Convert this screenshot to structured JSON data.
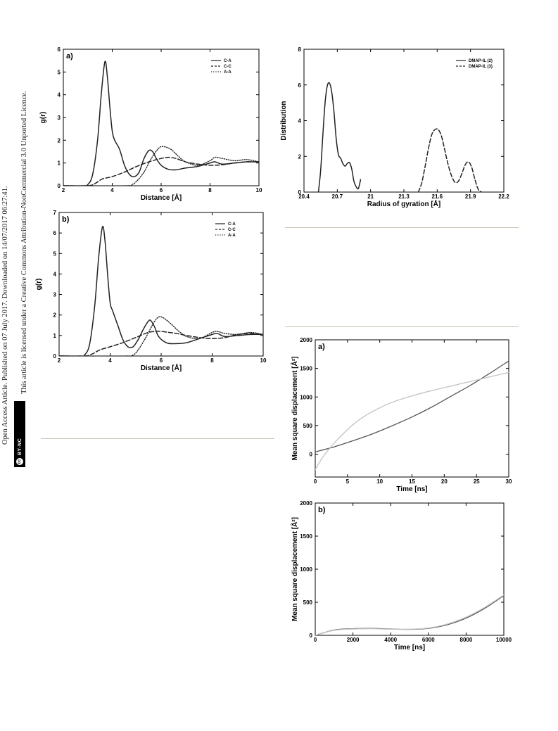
{
  "sidebar": {
    "line1": "Open Access Article. Published on 07 July 2017. Downloaded on 14/07/2017 06:27:41.",
    "line2": "This article is licensed under a Creative Commons Attribution-NonCommercial 3.0 Unported Licence.",
    "badge_cc": "cc",
    "badge_text": "BY-NC"
  },
  "chart_data": [
    {
      "id": "rdf_a",
      "type": "line",
      "panel_label": "a)",
      "xlabel": "Distance [Å]",
      "ylabel": "g(r)",
      "xlim": [
        2,
        10
      ],
      "ylim": [
        0,
        6
      ],
      "xticks": [
        2,
        4,
        6,
        8,
        10
      ],
      "yticks": [
        0,
        1,
        2,
        3,
        4,
        5,
        6
      ],
      "legend_position": "top-right",
      "series": [
        {
          "name": "C-A",
          "style": "solid",
          "x": [
            2,
            2.8,
            3.0,
            3.2,
            3.4,
            3.55,
            3.7,
            3.8,
            3.9,
            4.0,
            4.1,
            4.3,
            4.5,
            4.7,
            4.9,
            5.1,
            5.3,
            5.5,
            5.65,
            5.8,
            6.0,
            6.3,
            6.6,
            7.0,
            7.5,
            8.0,
            8.2,
            8.5,
            9.0,
            9.5,
            10
          ],
          "y": [
            0,
            0,
            0.05,
            0.5,
            2.0,
            4.0,
            5.45,
            4.8,
            3.5,
            2.4,
            2.0,
            1.6,
            0.9,
            0.5,
            0.4,
            0.6,
            1.2,
            1.55,
            1.5,
            1.2,
            0.9,
            0.72,
            0.7,
            0.78,
            0.85,
            1.0,
            1.05,
            0.95,
            1.0,
            1.05,
            1.05
          ]
        },
        {
          "name": "C-C",
          "style": "dashed",
          "x": [
            2,
            3.0,
            3.3,
            3.6,
            4.0,
            4.5,
            5.0,
            5.5,
            6.0,
            6.3,
            6.6,
            7.0,
            7.5,
            8.0,
            8.5,
            9.0,
            9.5,
            10
          ],
          "y": [
            0,
            0,
            0.1,
            0.3,
            0.4,
            0.6,
            0.85,
            1.05,
            1.2,
            1.25,
            1.2,
            1.05,
            0.95,
            0.9,
            0.92,
            1.0,
            1.05,
            1.05
          ]
        },
        {
          "name": "A-A",
          "style": "dotted",
          "x": [
            2,
            4.5,
            4.8,
            5.0,
            5.3,
            5.6,
            5.9,
            6.1,
            6.4,
            6.7,
            7.0,
            7.5,
            8.0,
            8.2,
            8.5,
            9.0,
            9.5,
            10
          ],
          "y": [
            0,
            0,
            0.05,
            0.2,
            0.6,
            1.2,
            1.65,
            1.72,
            1.6,
            1.3,
            1.05,
            0.9,
            1.1,
            1.25,
            1.2,
            1.1,
            1.15,
            1.05
          ]
        }
      ]
    },
    {
      "id": "rdf_b",
      "type": "line",
      "panel_label": "b)",
      "xlabel": "Distance [Å]",
      "ylabel": "g(r)",
      "xlim": [
        2,
        10
      ],
      "ylim": [
        0,
        7
      ],
      "xticks": [
        2,
        4,
        6,
        8,
        10
      ],
      "yticks": [
        0,
        1,
        2,
        3,
        4,
        5,
        6,
        7
      ],
      "legend_position": "top-right",
      "series": [
        {
          "name": "C-A",
          "style": "solid",
          "x": [
            2,
            2.8,
            3.0,
            3.2,
            3.4,
            3.55,
            3.7,
            3.8,
            3.9,
            4.0,
            4.1,
            4.3,
            4.5,
            4.7,
            4.9,
            5.1,
            5.3,
            5.5,
            5.6,
            5.75,
            5.9,
            6.2,
            6.5,
            7.0,
            7.5,
            8.0,
            8.2,
            8.5,
            9.0,
            9.5,
            10
          ],
          "y": [
            0,
            0,
            0.05,
            0.6,
            2.5,
            4.8,
            6.3,
            5.6,
            4.0,
            2.6,
            2.2,
            1.5,
            0.8,
            0.45,
            0.45,
            0.8,
            1.3,
            1.7,
            1.72,
            1.4,
            0.95,
            0.65,
            0.6,
            0.65,
            0.85,
            1.05,
            1.1,
            0.95,
            1.0,
            1.05,
            1.05
          ]
        },
        {
          "name": "C-C",
          "style": "dashed",
          "x": [
            2,
            3.0,
            3.3,
            3.6,
            4.0,
            4.5,
            5.0,
            5.5,
            5.8,
            6.0,
            6.3,
            6.6,
            7.0,
            7.5,
            8.0,
            8.5,
            9.0,
            9.5,
            10
          ],
          "y": [
            0,
            0,
            0.1,
            0.3,
            0.45,
            0.65,
            0.9,
            1.15,
            1.2,
            1.2,
            1.15,
            1.1,
            1.0,
            0.9,
            0.85,
            0.9,
            1.05,
            1.1,
            1.05
          ]
        },
        {
          "name": "A-A",
          "style": "dotted",
          "x": [
            2,
            4.6,
            4.9,
            5.1,
            5.4,
            5.7,
            5.9,
            6.1,
            6.4,
            6.7,
            7.0,
            7.5,
            8.0,
            8.2,
            8.5,
            9.0,
            9.5,
            10
          ],
          "y": [
            0,
            0,
            0.05,
            0.3,
            0.9,
            1.6,
            1.9,
            1.85,
            1.55,
            1.2,
            0.95,
            0.85,
            1.15,
            1.2,
            1.1,
            1.05,
            1.15,
            1.05
          ]
        }
      ]
    },
    {
      "id": "rg_dist",
      "type": "line",
      "panel_label": "",
      "xlabel": "Radius of gyration [Å]",
      "ylabel": "Distribution",
      "xlim": [
        20.4,
        22.2
      ],
      "ylim": [
        0,
        8
      ],
      "xticks": [
        20.4,
        20.7,
        21,
        21.3,
        21.6,
        21.9,
        22.2
      ],
      "yticks": [
        0,
        2,
        4,
        6,
        8
      ],
      "legend_position": "top-right",
      "series": [
        {
          "name": "DMAP-IL (2)",
          "style": "solid",
          "x": [
            20.53,
            20.55,
            20.57,
            20.59,
            20.61,
            20.63,
            20.65,
            20.67,
            20.69,
            20.71,
            20.73,
            20.75,
            20.77,
            20.79,
            20.81,
            20.83,
            20.85,
            20.87,
            20.89,
            20.91
          ],
          "y": [
            0,
            1.2,
            3.2,
            5.0,
            5.95,
            6.1,
            5.6,
            4.5,
            3.0,
            2.1,
            1.9,
            1.6,
            1.45,
            1.6,
            1.65,
            1.3,
            0.6,
            0.3,
            0.2,
            0.7
          ]
        },
        {
          "name": "DMAP-IL (3)",
          "style": "dashed",
          "x": [
            21.43,
            21.46,
            21.49,
            21.52,
            21.55,
            21.58,
            21.61,
            21.64,
            21.67,
            21.7,
            21.73,
            21.76,
            21.79,
            21.82,
            21.85,
            21.88,
            21.91,
            21.94,
            21.97,
            22.0
          ],
          "y": [
            0,
            0.5,
            1.4,
            2.4,
            3.2,
            3.5,
            3.5,
            3.1,
            2.3,
            1.5,
            0.9,
            0.55,
            0.6,
            1.0,
            1.5,
            1.7,
            1.4,
            0.7,
            0.15,
            0
          ]
        }
      ]
    },
    {
      "id": "msd_a",
      "type": "line",
      "panel_label": "a)",
      "xlabel": "Time [ns]",
      "ylabel": "Mean square displacement [Å²]",
      "xlim": [
        0,
        30
      ],
      "ylim": [
        -400,
        2000
      ],
      "xticks": [
        0,
        5,
        10,
        15,
        20,
        25,
        30
      ],
      "yticks": [
        0,
        500,
        1000,
        1500,
        2000
      ],
      "series": [
        {
          "style": "solid-dark",
          "x": [
            0,
            3,
            6,
            9,
            12,
            15,
            18,
            21,
            24,
            27,
            30
          ],
          "y": [
            40,
            130,
            240,
            360,
            500,
            650,
            820,
            1010,
            1200,
            1410,
            1630
          ]
        },
        {
          "style": "solid-light",
          "x": [
            0,
            1,
            2,
            3,
            4,
            6,
            8,
            10,
            12,
            15,
            18,
            21,
            24,
            27,
            30
          ],
          "y": [
            -270,
            -80,
            70,
            200,
            320,
            530,
            690,
            810,
            910,
            1020,
            1110,
            1190,
            1270,
            1350,
            1430
          ]
        }
      ]
    },
    {
      "id": "msd_b",
      "type": "line",
      "panel_label": "b)",
      "xlabel": "Time [ns]",
      "ylabel": "Mean square displacement [Å²]",
      "xlim": [
        0,
        10000
      ],
      "ylim": [
        0,
        2000
      ],
      "xticks": [
        0,
        2000,
        4000,
        6000,
        8000,
        10000
      ],
      "yticks": [
        0,
        500,
        1000,
        1500,
        2000
      ],
      "series": [
        {
          "style": "solid-dark",
          "x": [
            0,
            1000,
            2000,
            3000,
            4000,
            5000,
            6000,
            7000,
            8000,
            9000,
            10000
          ],
          "y": [
            0,
            80,
            100,
            105,
            95,
            90,
            105,
            160,
            260,
            410,
            600
          ]
        },
        {
          "style": "solid-light",
          "x": [
            0,
            1000,
            2000,
            3000,
            4000,
            5000,
            6000,
            7000,
            8000,
            9000,
            10000
          ],
          "y": [
            0,
            75,
            95,
            100,
            92,
            92,
            110,
            170,
            275,
            425,
            610
          ]
        }
      ]
    }
  ]
}
